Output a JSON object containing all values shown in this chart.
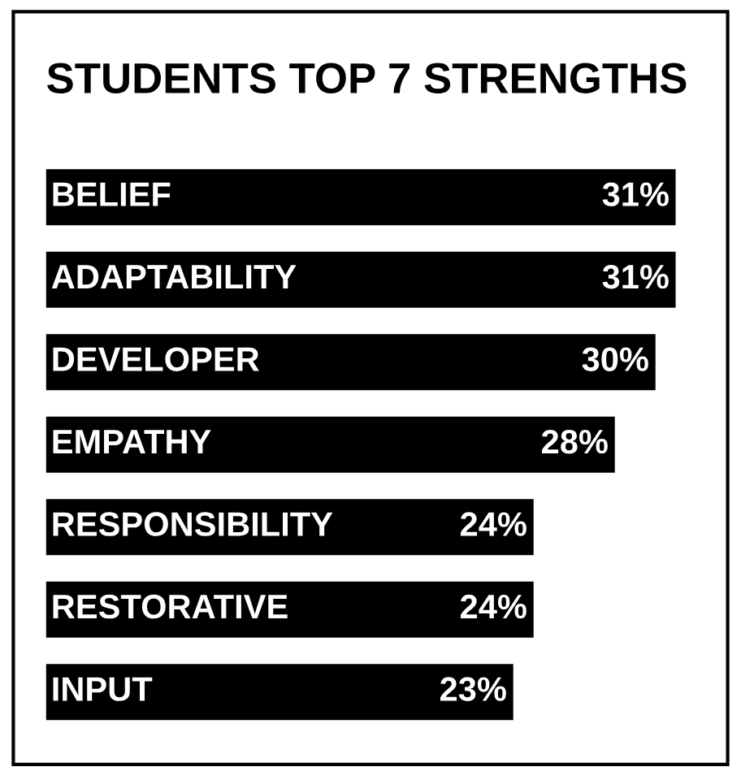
{
  "chart_data": {
    "type": "bar",
    "orientation": "horizontal",
    "title": "STUDENTS TOP 7 STRENGTHS",
    "categories": [
      "BELIEF",
      "ADAPTABILITY",
      "DEVELOPER",
      "EMPATHY",
      "RESPONSIBILITY",
      "RESTORATIVE",
      "INPUT"
    ],
    "values": [
      31,
      31,
      30,
      28,
      24,
      24,
      23
    ],
    "value_labels": [
      "31%",
      "31%",
      "30%",
      "28%",
      "24%",
      "24%",
      "23%"
    ],
    "color": "#000000"
  }
}
